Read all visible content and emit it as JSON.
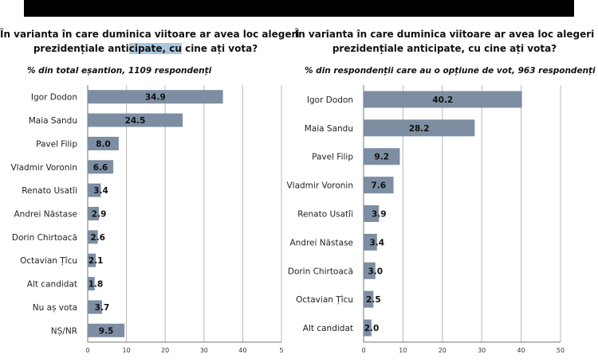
{
  "chart_data": [
    {
      "type": "bar",
      "orientation": "horizontal",
      "title_parts": [
        "În varianta în care duminica viitoare ar avea loc alegeri prezidențiale anti",
        "cipate, cu",
        " cine ați vota?"
      ],
      "subtitle": "% din total eșantion, 1109 respondenți",
      "categories": [
        "Igor Dodon",
        "Maia Sandu",
        "Pavel Filip",
        "Vladmir Voronin",
        "Renato Usatîi",
        "Andrei Năstase",
        "Dorin Chirtoacă",
        "Octavian Țîcu",
        "Alt candidat",
        "Nu aș vota",
        "NȘ/NR"
      ],
      "values": [
        34.9,
        24.5,
        8.0,
        6.6,
        3.4,
        2.9,
        2.6,
        2.1,
        1.8,
        3.7,
        9.5
      ],
      "value_labels": [
        "34.9",
        "24.5",
        "8.0",
        "6.6",
        "3.4",
        "2.9",
        "2.6",
        "2.1",
        "1.8",
        "3.7",
        "9.5"
      ],
      "xlim": [
        0,
        50
      ],
      "ticks": [
        "0",
        "10",
        "20",
        "30",
        "40",
        "5"
      ],
      "grid": true,
      "bar_color": "#7d8ea3"
    },
    {
      "type": "bar",
      "orientation": "horizontal",
      "title_parts": [
        "În varianta în care duminica viitoare ar avea loc alegeri prezidențiale anticipate, cu cine ați vota?",
        "",
        ""
      ],
      "subtitle": "% din respondenții care au o opțiune de vot, 963 respondenți",
      "categories": [
        "Igor Dodon",
        "Maia Sandu",
        "Pavel Filip",
        "Vladmir Voronin",
        "Renato Usatîi",
        "Andrei Năstase",
        "Dorin Chirtoacă",
        "Octavian Țîcu",
        "Alt candidat"
      ],
      "values": [
        40.2,
        28.2,
        9.2,
        7.6,
        3.9,
        3.4,
        3.0,
        2.5,
        2.0
      ],
      "value_labels": [
        "40.2",
        "28.2",
        "9.2",
        "7.6",
        "3.9",
        "3.4",
        "3.0",
        "2.5",
        "2.0"
      ],
      "xlim": [
        0,
        50
      ],
      "ticks": [
        "0",
        "10",
        "20",
        "30",
        "40",
        "50"
      ],
      "grid": true,
      "bar_color": "#7d8ea3"
    }
  ]
}
